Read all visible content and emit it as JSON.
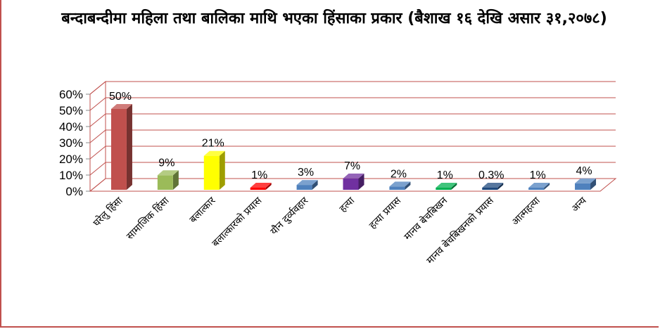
{
  "chart_data": {
    "type": "bar",
    "title": "बन्दाबन्दीमा महिला तथा बालिका माथि भएका हिंसाका प्रकार (बैशाख १६ देखि असार ३१,२०७८)",
    "categories": [
      "घरेलु हिंसा",
      "सामाजिक हिंसा",
      "बलात्कार",
      "बलात्कारको प्रयास",
      "यौन दुर्व्यवहार",
      "हत्या",
      "हत्या प्रयास",
      "मानव बेचबिखन",
      "मानव बेचबिखनको प्रयास",
      "आत्महत्या",
      "अन्य"
    ],
    "values": [
      50,
      9,
      21,
      1,
      3,
      7,
      2,
      1,
      0.3,
      1,
      4
    ],
    "data_labels": [
      "50%",
      "9%",
      "21%",
      "1%",
      "3%",
      "7%",
      "2%",
      "1%",
      "0.3%",
      "1%",
      "4%"
    ],
    "colors": [
      "#c0504d",
      "#9bbb59",
      "#ffff00",
      "#ff0000",
      "#4f81bd",
      "#7030a0",
      "#4f81bd",
      "#00b050",
      "#1f497d",
      "#4f81bd",
      "#4f81bd"
    ],
    "yticks": [
      "0%",
      "10%",
      "20%",
      "30%",
      "40%",
      "50%",
      "60%"
    ],
    "ylim": [
      0,
      60
    ],
    "grid": true,
    "gridline_color": "#c0504d"
  }
}
